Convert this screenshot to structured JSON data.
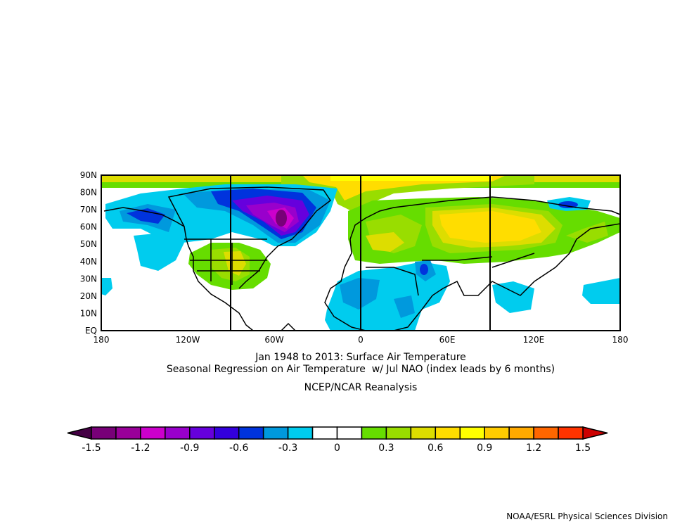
{
  "title_line1": "Jan 1948 to 2013: Surface Air Temperature",
  "title_line2": "Seasonal Regression on Air Temperature  w/ Jul NAO (index leads by 6 months)",
  "subtitle": "NCEP/NCAR Reanalysis",
  "footer": "NOAA/ESRL Physical Sciences Division",
  "map": {
    "lat_labels": [
      "90N",
      "80N",
      "70N",
      "60N",
      "50N",
      "40N",
      "30N",
      "20N",
      "10N",
      "EQ"
    ],
    "lon_labels": [
      "180",
      "120W",
      "60W",
      "0",
      "60E",
      "120E",
      "180"
    ],
    "lat_range": [
      0,
      90
    ],
    "lon_range": [
      -180,
      180
    ],
    "variable": "Surface Air Temperature regression"
  },
  "colorbar": {
    "min": -1.5,
    "max": 1.5,
    "step": 0.15,
    "labels": [
      "-1.5",
      "-1.2",
      "-0.9",
      "-0.6",
      "-0.3",
      "0",
      "0.3",
      "0.6",
      "0.9",
      "1.2",
      "1.5"
    ],
    "low_extend_color": "#440044",
    "high_extend_color": "#cc0000",
    "colors": [
      "#780078",
      "#990099",
      "#cc00cc",
      "#9900cc",
      "#6600dd",
      "#3300dd",
      "#0033dd",
      "#0099dd",
      "#00ccee",
      "#ffffff",
      "#ffffff",
      "#66dd00",
      "#99dd00",
      "#dddd00",
      "#ffdd00",
      "#ffff00",
      "#ffcc00",
      "#ffaa00",
      "#ff6600",
      "#ff3300"
    ]
  }
}
